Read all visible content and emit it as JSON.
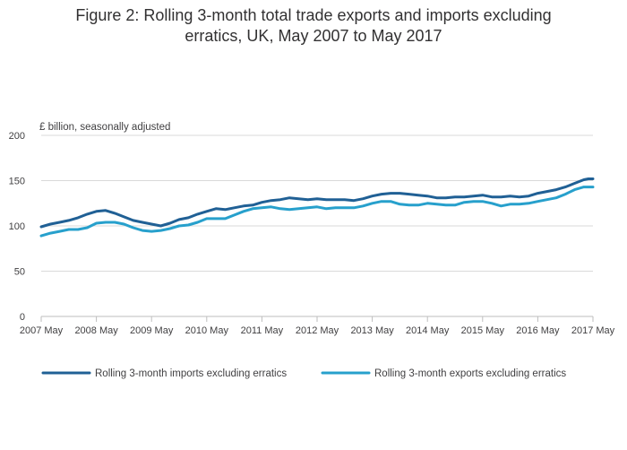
{
  "title": "Figure 2: Rolling 3-month total trade exports and imports excluding erratics, UK, May 2007 to May 2017",
  "title_lines": [
    "Figure 2: Rolling 3-month total trade exports and imports excluding",
    "erratics, UK, May 2007 to May 2017"
  ],
  "units_label": "£ billion, seasonally adjusted",
  "colors": {
    "imports": "#206095",
    "exports": "#27a0cc",
    "axis": "#bebebe",
    "grid": "#d9d9d9"
  },
  "chart_data": {
    "type": "line",
    "title": "Figure 2: Rolling 3-month total trade exports and imports excluding erratics, UK, May 2007 to May 2017",
    "xlabel": "",
    "ylabel": "£ billion, seasonally adjusted",
    "ylim": [
      0,
      200
    ],
    "yticks": [
      0,
      50,
      100,
      150,
      200
    ],
    "xlim": [
      2007.333,
      2017.333
    ],
    "xticks": [
      {
        "x": 2007.333,
        "label": "2007 May"
      },
      {
        "x": 2008.333,
        "label": "2008 May"
      },
      {
        "x": 2009.333,
        "label": "2009 May"
      },
      {
        "x": 2010.333,
        "label": "2010 May"
      },
      {
        "x": 2011.333,
        "label": "2011 May"
      },
      {
        "x": 2012.333,
        "label": "2012 May"
      },
      {
        "x": 2013.333,
        "label": "2013 May"
      },
      {
        "x": 2014.333,
        "label": "2014 May"
      },
      {
        "x": 2015.333,
        "label": "2015 May"
      },
      {
        "x": 2016.333,
        "label": "2016 May"
      },
      {
        "x": 2017.333,
        "label": "2017 May"
      }
    ],
    "grid": "horizontal",
    "legend_position": "bottom",
    "series": [
      {
        "name": "Rolling 3-month imports excluding erratics",
        "color": "#206095",
        "points": [
          [
            2007.333,
            99
          ],
          [
            2007.5,
            102
          ],
          [
            2007.667,
            104
          ],
          [
            2007.833,
            106
          ],
          [
            2008.0,
            109
          ],
          [
            2008.167,
            113
          ],
          [
            2008.333,
            116
          ],
          [
            2008.5,
            117
          ],
          [
            2008.667,
            114
          ],
          [
            2008.833,
            110
          ],
          [
            2009.0,
            106
          ],
          [
            2009.167,
            104
          ],
          [
            2009.333,
            102
          ],
          [
            2009.5,
            100
          ],
          [
            2009.667,
            103
          ],
          [
            2009.833,
            107
          ],
          [
            2010.0,
            109
          ],
          [
            2010.167,
            113
          ],
          [
            2010.333,
            116
          ],
          [
            2010.5,
            119
          ],
          [
            2010.667,
            118
          ],
          [
            2010.833,
            120
          ],
          [
            2011.0,
            122
          ],
          [
            2011.167,
            123
          ],
          [
            2011.333,
            126
          ],
          [
            2011.5,
            128
          ],
          [
            2011.667,
            129
          ],
          [
            2011.833,
            131
          ],
          [
            2012.0,
            130
          ],
          [
            2012.167,
            129
          ],
          [
            2012.333,
            130
          ],
          [
            2012.5,
            129
          ],
          [
            2012.667,
            129
          ],
          [
            2012.833,
            129
          ],
          [
            2013.0,
            128
          ],
          [
            2013.167,
            130
          ],
          [
            2013.333,
            133
          ],
          [
            2013.5,
            135
          ],
          [
            2013.667,
            136
          ],
          [
            2013.833,
            136
          ],
          [
            2014.0,
            135
          ],
          [
            2014.167,
            134
          ],
          [
            2014.333,
            133
          ],
          [
            2014.5,
            131
          ],
          [
            2014.667,
            131
          ],
          [
            2014.833,
            132
          ],
          [
            2015.0,
            132
          ],
          [
            2015.167,
            133
          ],
          [
            2015.333,
            134
          ],
          [
            2015.5,
            132
          ],
          [
            2015.667,
            132
          ],
          [
            2015.833,
            133
          ],
          [
            2016.0,
            132
          ],
          [
            2016.167,
            133
          ],
          [
            2016.333,
            136
          ],
          [
            2016.5,
            138
          ],
          [
            2016.667,
            140
          ],
          [
            2016.833,
            143
          ],
          [
            2017.0,
            147
          ],
          [
            2017.167,
            151
          ],
          [
            2017.25,
            152
          ],
          [
            2017.333,
            152
          ]
        ]
      },
      {
        "name": "Rolling 3-month exports excluding erratics",
        "color": "#27a0cc",
        "points": [
          [
            2007.333,
            89
          ],
          [
            2007.5,
            92
          ],
          [
            2007.667,
            94
          ],
          [
            2007.833,
            96
          ],
          [
            2008.0,
            96
          ],
          [
            2008.167,
            98
          ],
          [
            2008.333,
            103
          ],
          [
            2008.5,
            104
          ],
          [
            2008.667,
            104
          ],
          [
            2008.833,
            102
          ],
          [
            2009.0,
            98
          ],
          [
            2009.167,
            95
          ],
          [
            2009.333,
            94
          ],
          [
            2009.5,
            95
          ],
          [
            2009.667,
            97
          ],
          [
            2009.833,
            100
          ],
          [
            2010.0,
            101
          ],
          [
            2010.167,
            104
          ],
          [
            2010.333,
            108
          ],
          [
            2010.5,
            108
          ],
          [
            2010.667,
            108
          ],
          [
            2010.833,
            112
          ],
          [
            2011.0,
            116
          ],
          [
            2011.167,
            119
          ],
          [
            2011.333,
            120
          ],
          [
            2011.5,
            121
          ],
          [
            2011.667,
            119
          ],
          [
            2011.833,
            118
          ],
          [
            2012.0,
            119
          ],
          [
            2012.167,
            120
          ],
          [
            2012.333,
            121
          ],
          [
            2012.5,
            119
          ],
          [
            2012.667,
            120
          ],
          [
            2012.833,
            120
          ],
          [
            2013.0,
            120
          ],
          [
            2013.167,
            122
          ],
          [
            2013.333,
            125
          ],
          [
            2013.5,
            127
          ],
          [
            2013.667,
            127
          ],
          [
            2013.833,
            124
          ],
          [
            2014.0,
            123
          ],
          [
            2014.167,
            123
          ],
          [
            2014.333,
            125
          ],
          [
            2014.5,
            124
          ],
          [
            2014.667,
            123
          ],
          [
            2014.833,
            123
          ],
          [
            2015.0,
            126
          ],
          [
            2015.167,
            127
          ],
          [
            2015.333,
            127
          ],
          [
            2015.5,
            125
          ],
          [
            2015.667,
            122
          ],
          [
            2015.833,
            124
          ],
          [
            2016.0,
            124
          ],
          [
            2016.167,
            125
          ],
          [
            2016.333,
            127
          ],
          [
            2016.5,
            129
          ],
          [
            2016.667,
            131
          ],
          [
            2016.833,
            135
          ],
          [
            2017.0,
            140
          ],
          [
            2017.167,
            143
          ],
          [
            2017.25,
            143
          ],
          [
            2017.333,
            143
          ]
        ]
      }
    ]
  }
}
